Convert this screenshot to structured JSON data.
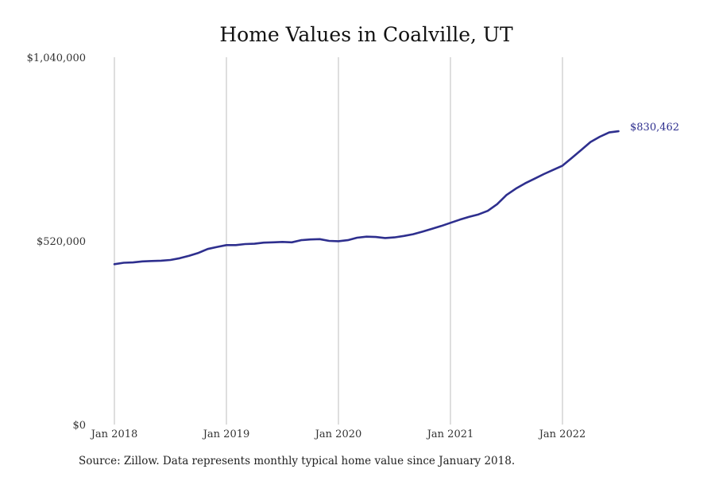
{
  "chart_data": {
    "type": "line",
    "title": "Home Values in Coalville, UT",
    "xlabel": "",
    "ylabel": "",
    "ylim": [
      0,
      1040000
    ],
    "y_ticks": [
      {
        "value": 0,
        "label": "$0"
      },
      {
        "value": 520000,
        "label": "$520,000"
      },
      {
        "value": 1040000,
        "label": "$1,040,000"
      }
    ],
    "x_ticks": [
      "Jan 2018",
      "Jan 2019",
      "Jan 2020",
      "Jan 2021",
      "Jan 2022"
    ],
    "grid": "vertical lines at January of each year",
    "line_color": "#2e2f8e",
    "series": [
      {
        "x": [
          "2018-01",
          "2018-02",
          "2018-03",
          "2018-04",
          "2018-05",
          "2018-06",
          "2018-07",
          "2018-08",
          "2018-09",
          "2018-10",
          "2018-11",
          "2018-12",
          "2019-01",
          "2019-02",
          "2019-03",
          "2019-04",
          "2019-05",
          "2019-06",
          "2019-07",
          "2019-08",
          "2019-09",
          "2019-10",
          "2019-11",
          "2019-12",
          "2020-01",
          "2020-02",
          "2020-03",
          "2020-04",
          "2020-05",
          "2020-06",
          "2020-07",
          "2020-08",
          "2020-09",
          "2020-10",
          "2020-11",
          "2020-12",
          "2021-01",
          "2021-02",
          "2021-03",
          "2021-04",
          "2021-05",
          "2021-06",
          "2021-07",
          "2021-08",
          "2021-09",
          "2021-10",
          "2021-11",
          "2021-12",
          "2022-01",
          "2022-02",
          "2022-03",
          "2022-04",
          "2022-05",
          "2022-06",
          "2022-07"
        ],
        "values": [
          454000,
          458000,
          459000,
          462000,
          463000,
          464000,
          466000,
          471000,
          478000,
          486000,
          497000,
          503000,
          508000,
          508000,
          511000,
          512000,
          515000,
          516000,
          517000,
          516000,
          522000,
          524000,
          525000,
          520000,
          519000,
          522000,
          529000,
          532000,
          531000,
          528000,
          530000,
          534000,
          539000,
          546000,
          554000,
          562000,
          571000,
          580000,
          588000,
          595000,
          605000,
          624000,
          650000,
          668000,
          683000,
          696000,
          709000,
          721000,
          733000,
          755000,
          777000,
          800000,
          815000,
          827000,
          830462
        ]
      }
    ],
    "end_label": "$830,462"
  },
  "source": "Source: Zillow. Data represents monthly typical home value since January 2018."
}
